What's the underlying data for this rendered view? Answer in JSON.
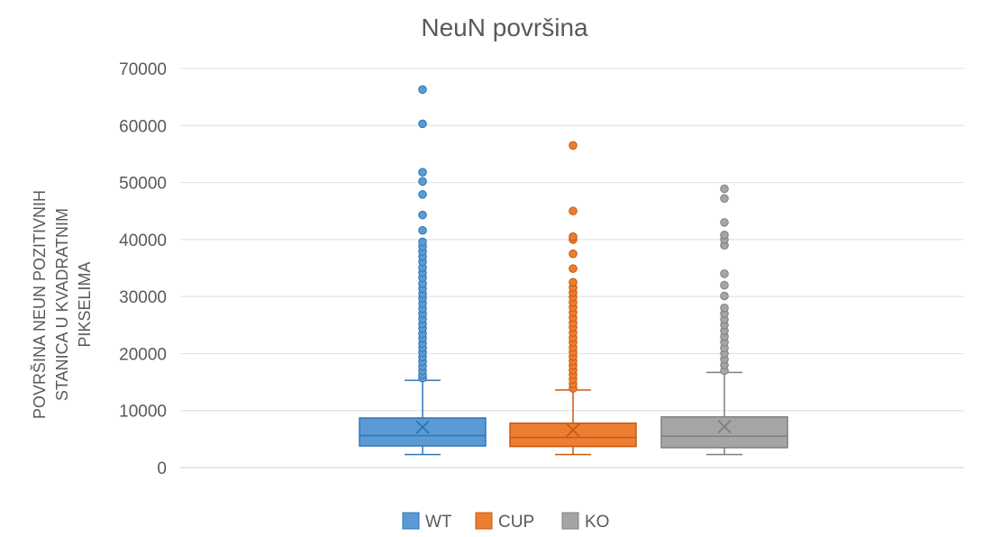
{
  "chart_data": {
    "type": "box",
    "title": "NeuN površina",
    "xlabel": "",
    "ylabel_lines": [
      "POVRŠINA NEUN POZITIVNIH",
      "STANICA U KVADRATNIM",
      "PIKSELIMA"
    ],
    "ylim": [
      0,
      70000
    ],
    "yticks": [
      0,
      10000,
      20000,
      30000,
      40000,
      50000,
      60000,
      70000
    ],
    "ytick_labels": [
      "0",
      "10000",
      "20000",
      "30000",
      "40000",
      "50000",
      "60000",
      "70000"
    ],
    "grid": true,
    "legend_position": "bottom",
    "series": [
      {
        "name": "WT",
        "color": "#5B9BD5",
        "stroke": "#2E75B6",
        "whisker_low": 2300,
        "q1": 3800,
        "median": 5600,
        "mean": 7100,
        "q3": 8700,
        "whisker_high": 15300,
        "outliers": [
          15700,
          16300,
          17000,
          17800,
          18600,
          19400,
          20200,
          21000,
          21800,
          22700,
          23500,
          24400,
          25200,
          26100,
          27000,
          27900,
          28800,
          29700,
          30500,
          31400,
          32300,
          33300,
          34200,
          35100,
          36100,
          37000,
          37900,
          38800,
          39600,
          41600,
          44300,
          47900,
          50200,
          51800,
          60300,
          66300
        ]
      },
      {
        "name": "CUP",
        "color": "#ED7D31",
        "stroke": "#C55A11",
        "whisker_low": 2300,
        "q1": 3700,
        "median": 5300,
        "mean": 6600,
        "q3": 7800,
        "whisker_high": 13600,
        "outliers": [
          13900,
          14700,
          15500,
          16300,
          17100,
          17900,
          18700,
          19500,
          20300,
          21100,
          22000,
          22800,
          23700,
          24600,
          25400,
          26300,
          27200,
          28100,
          29000,
          29900,
          30700,
          31600,
          32500,
          34900,
          37500,
          40000,
          40500,
          45000,
          56500
        ]
      },
      {
        "name": "KO",
        "color": "#A5A5A5",
        "stroke": "#7F7F7F",
        "whisker_low": 2300,
        "q1": 3500,
        "median": 5500,
        "mean": 7200,
        "q3": 8900,
        "whisker_high": 16700,
        "outliers": [
          17000,
          18000,
          19000,
          20000,
          21000,
          22000,
          23000,
          24000,
          25000,
          26000,
          27000,
          28000,
          30100,
          32000,
          34000,
          39000,
          40000,
          40800,
          43000,
          47200,
          48900
        ]
      }
    ]
  }
}
